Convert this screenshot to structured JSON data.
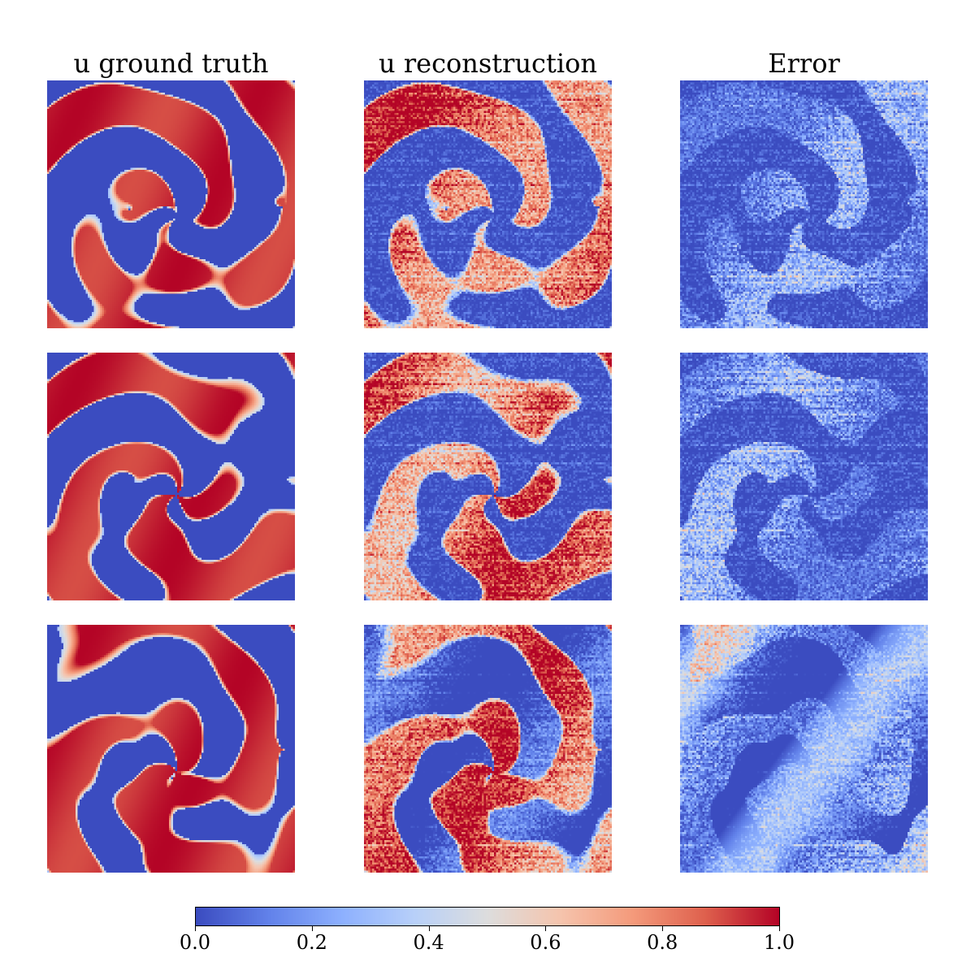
{
  "chart_data": {
    "type": "heatmap",
    "columns": [
      "u ground truth",
      "u reconstruction",
      "Error"
    ],
    "rows": 3,
    "colormap": "coolwarm",
    "colorbar": {
      "range": [
        0.0,
        1.0
      ],
      "ticks": [
        "0.0",
        "0.2",
        "0.4",
        "0.6",
        "0.8",
        "1.0"
      ],
      "tick_values": [
        0.0,
        0.2,
        0.4,
        0.6,
        0.8,
        1.0
      ]
    }
  }
}
